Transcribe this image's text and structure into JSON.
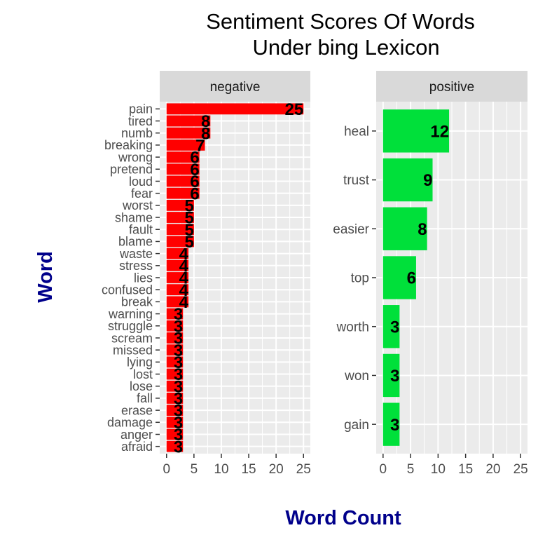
{
  "chart_data": {
    "type": "bar",
    "orientation": "horizontal",
    "title": "Sentiment Scores Of Words\nUnder bing Lexicon",
    "xlabel": "Word Count",
    "ylabel": "Word",
    "xlim": [
      0,
      25
    ],
    "x_ticks": [
      0,
      5,
      10,
      15,
      20,
      25
    ],
    "grid": true,
    "facets": [
      {
        "name": "negative",
        "color": "#ff0000",
        "categories": [
          "pain",
          "tired",
          "numb",
          "breaking",
          "wrong",
          "pretend",
          "loud",
          "fear",
          "worst",
          "shame",
          "fault",
          "blame",
          "waste",
          "stress",
          "lies",
          "confused",
          "break",
          "warning",
          "struggle",
          "scream",
          "missed",
          "lying",
          "lost",
          "lose",
          "fall",
          "erase",
          "damage",
          "anger",
          "afraid"
        ],
        "values": [
          25,
          8,
          8,
          7,
          6,
          6,
          6,
          6,
          5,
          5,
          5,
          5,
          4,
          4,
          4,
          4,
          4,
          3,
          3,
          3,
          3,
          3,
          3,
          3,
          3,
          3,
          3,
          3,
          3
        ]
      },
      {
        "name": "positive",
        "color": "#00e03a",
        "categories": [
          "heal",
          "trust",
          "easier",
          "top",
          "worth",
          "won",
          "gain"
        ],
        "values": [
          12,
          9,
          8,
          6,
          3,
          3,
          3
        ]
      }
    ]
  },
  "colors": {
    "panel_background": "#ebebeb",
    "strip_background": "#d9d9d9",
    "axis_title": "#00008b",
    "tick_label": "#4d4d4d"
  }
}
